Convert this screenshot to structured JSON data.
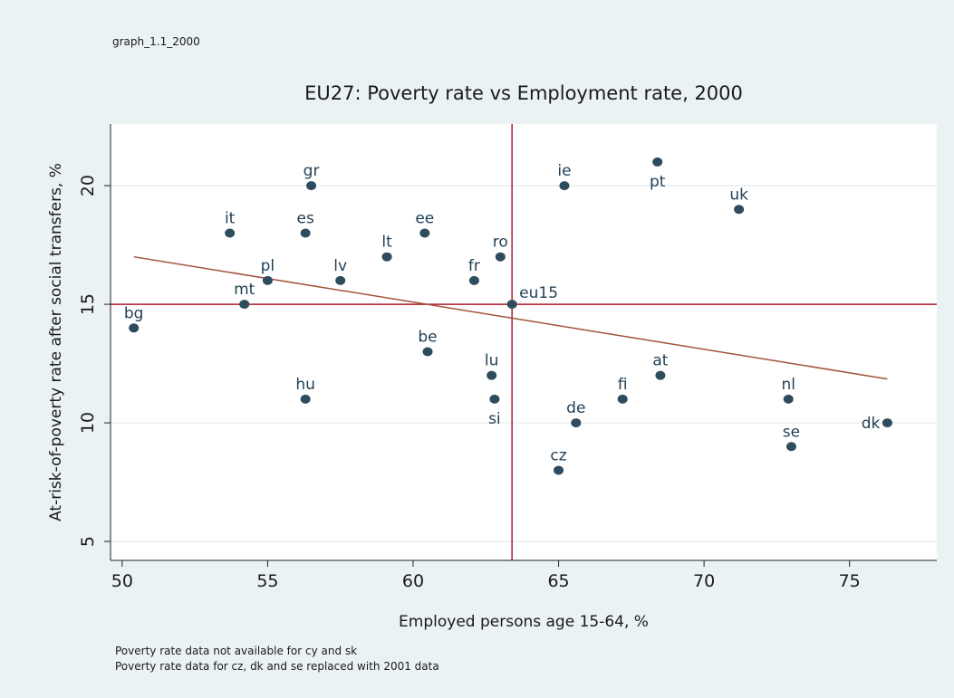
{
  "graph_id": "graph_1.1_2000",
  "notes": [
    "Poverty rate data not available for cy and sk",
    "Poverty rate data for cz, dk and se replaced with 2001 data"
  ],
  "colors": {
    "background": "#eaf2f3",
    "plot_background": "#ffffff",
    "marker": "#2f4b5e",
    "fit_line": "#a2523b",
    "reference_lines": "#b01c2e",
    "grid": "#e3e8ea"
  },
  "chart_data": {
    "type": "scatter",
    "title": "EU27: Poverty rate vs Employment rate, 2000",
    "xlabel": "Employed persons age 15-64, %",
    "ylabel": "At-risk-of-poverty rate after social transfers, %",
    "xlim": [
      49.6,
      78.0
    ],
    "ylim": [
      4.2,
      22.6
    ],
    "xticks": [
      50,
      55,
      60,
      65,
      70,
      75
    ],
    "yticks": [
      5,
      10,
      15,
      20
    ],
    "grid": "horizontal",
    "points": [
      {
        "label": "bg",
        "x": 50.4,
        "y": 14,
        "label_pos": "above"
      },
      {
        "label": "it",
        "x": 53.7,
        "y": 18,
        "label_pos": "above"
      },
      {
        "label": "mt",
        "x": 54.2,
        "y": 15,
        "label_pos": "above"
      },
      {
        "label": "pl",
        "x": 55.0,
        "y": 16,
        "label_pos": "above"
      },
      {
        "label": "es",
        "x": 56.3,
        "y": 18,
        "label_pos": "above"
      },
      {
        "label": "hu",
        "x": 56.3,
        "y": 11,
        "label_pos": "above"
      },
      {
        "label": "gr",
        "x": 56.5,
        "y": 20,
        "label_pos": "above"
      },
      {
        "label": "lv",
        "x": 57.5,
        "y": 16,
        "label_pos": "above"
      },
      {
        "label": "lt",
        "x": 59.1,
        "y": 17,
        "label_pos": "above"
      },
      {
        "label": "ee",
        "x": 60.4,
        "y": 18,
        "label_pos": "above"
      },
      {
        "label": "be",
        "x": 60.5,
        "y": 13,
        "label_pos": "above"
      },
      {
        "label": "fr",
        "x": 62.1,
        "y": 16,
        "label_pos": "above"
      },
      {
        "label": "lu",
        "x": 62.7,
        "y": 12,
        "label_pos": "above"
      },
      {
        "label": "si",
        "x": 62.8,
        "y": 11,
        "label_pos": "below"
      },
      {
        "label": "ro",
        "x": 63.0,
        "y": 17,
        "label_pos": "above"
      },
      {
        "label": "eu15",
        "x": 63.4,
        "y": 15,
        "label_pos": "right"
      },
      {
        "label": "cz",
        "x": 65.0,
        "y": 8,
        "label_pos": "above"
      },
      {
        "label": "ie",
        "x": 65.2,
        "y": 20,
        "label_pos": "above"
      },
      {
        "label": "de",
        "x": 65.6,
        "y": 10,
        "label_pos": "above"
      },
      {
        "label": "fi",
        "x": 67.2,
        "y": 11,
        "label_pos": "above"
      },
      {
        "label": "pt",
        "x": 68.4,
        "y": 21,
        "label_pos": "below"
      },
      {
        "label": "at",
        "x": 68.5,
        "y": 12,
        "label_pos": "above"
      },
      {
        "label": "uk",
        "x": 71.2,
        "y": 19,
        "label_pos": "above"
      },
      {
        "label": "nl",
        "x": 72.9,
        "y": 11,
        "label_pos": "above"
      },
      {
        "label": "se",
        "x": 73.0,
        "y": 9,
        "label_pos": "above"
      },
      {
        "label": "dk",
        "x": 76.3,
        "y": 10,
        "label_pos": "left"
      }
    ],
    "fit_line": {
      "x": [
        50.4,
        76.3
      ],
      "y": [
        17.0,
        11.85
      ]
    },
    "reference_lines": {
      "x": 63.4,
      "y": 15
    }
  }
}
